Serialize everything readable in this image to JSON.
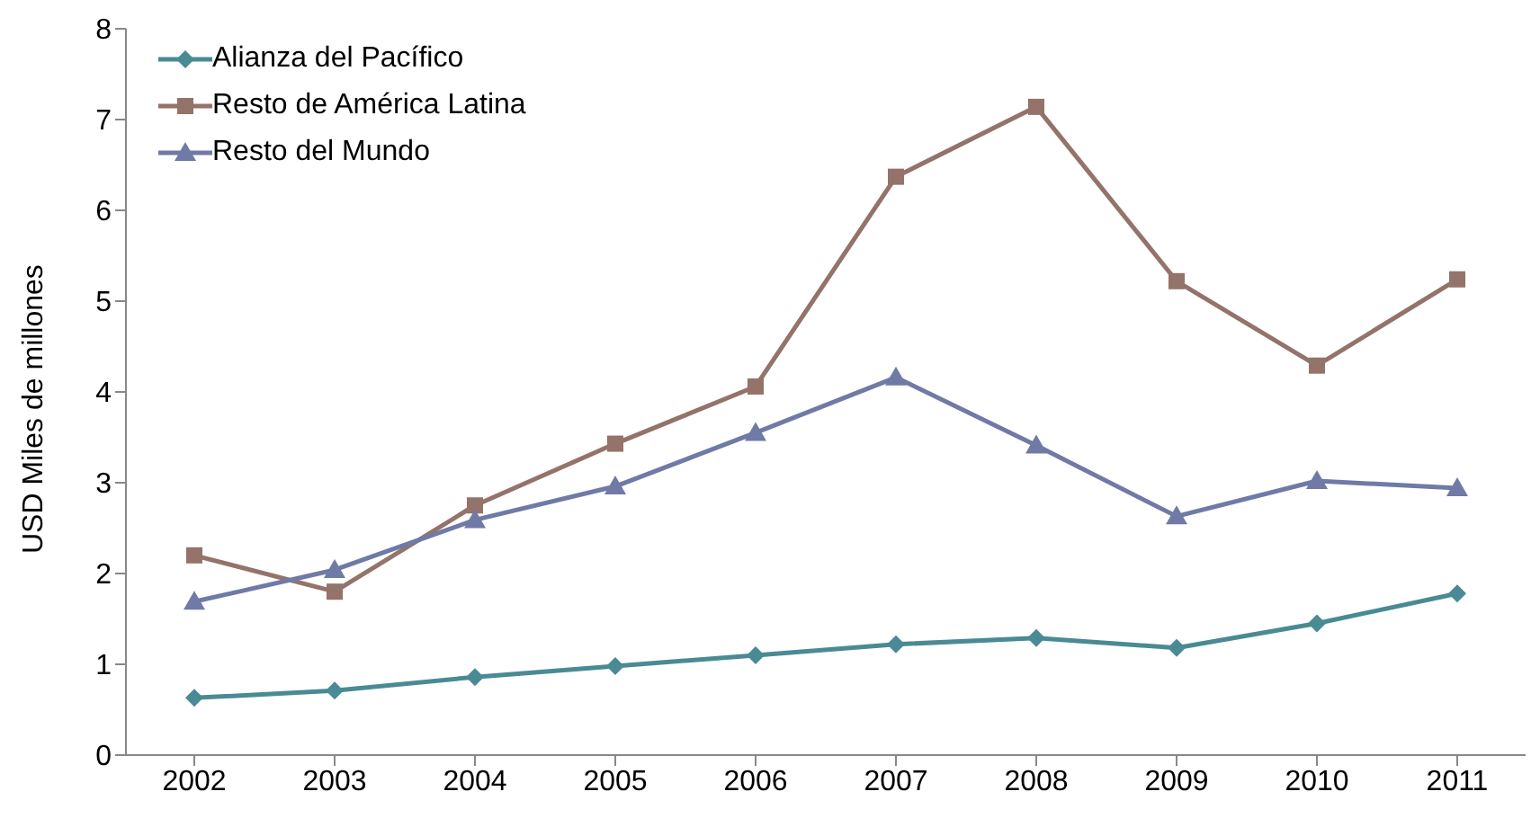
{
  "chart_data": {
    "type": "line",
    "ylabel": "USD Miles de millones",
    "categories": [
      "2002",
      "2003",
      "2004",
      "2005",
      "2006",
      "2007",
      "2008",
      "2009",
      "2010",
      "2011"
    ],
    "series": [
      {
        "name": "Alianza del Pacífico",
        "color": "#4a8a94",
        "marker": "diamond",
        "values": [
          0.63,
          0.71,
          0.86,
          0.98,
          1.1,
          1.22,
          1.29,
          1.18,
          1.45,
          1.78
        ]
      },
      {
        "name": "Resto de América Latina",
        "color": "#93736a",
        "marker": "square",
        "values": [
          2.2,
          1.8,
          2.75,
          3.43,
          4.06,
          6.37,
          7.14,
          5.22,
          4.29,
          5.24
        ]
      },
      {
        "name": "Resto del Mundo",
        "color": "#6f7aa6",
        "marker": "triangle",
        "values": [
          1.69,
          2.04,
          2.59,
          2.96,
          3.55,
          4.16,
          3.41,
          2.63,
          3.02,
          2.94
        ]
      }
    ],
    "ylim": [
      0,
      8
    ],
    "yticks": [
      0,
      1,
      2,
      3,
      4,
      5,
      6,
      7,
      8
    ],
    "grid": false,
    "legend": "top left"
  }
}
